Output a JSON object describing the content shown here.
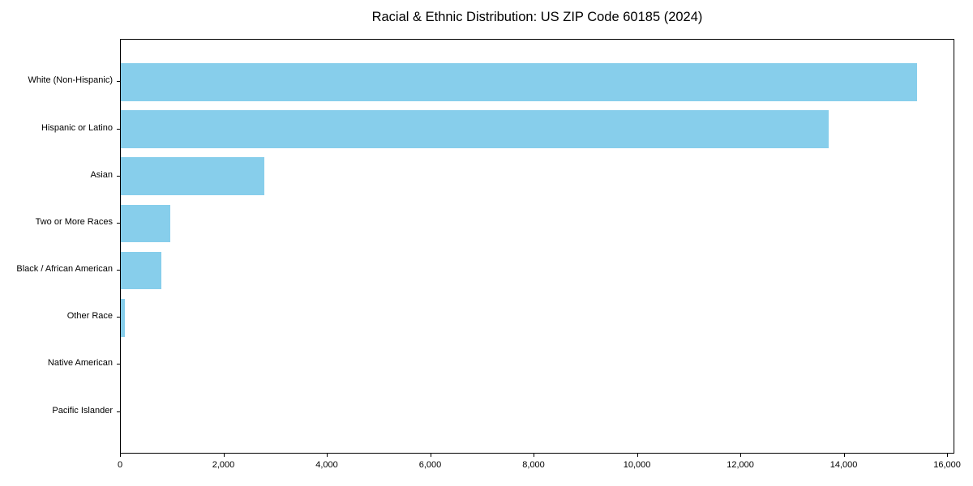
{
  "chart_data": {
    "type": "bar",
    "orientation": "horizontal",
    "title": "Racial & Ethnic Distribution: US ZIP Code 60185 (2024)",
    "xlabel": "",
    "ylabel": "",
    "categories": [
      "White (Non-Hispanic)",
      "Hispanic or Latino",
      "Asian",
      "Two or More Races",
      "Black / African American",
      "Other Race",
      "Native American",
      "Pacific Islander"
    ],
    "values": [
      15400,
      13700,
      2780,
      950,
      790,
      75,
      0,
      0
    ],
    "xlim": [
      0,
      16140
    ],
    "xticks": [
      0,
      2000,
      4000,
      6000,
      8000,
      10000,
      12000,
      14000,
      16000
    ],
    "bar_color": "#87CEEB",
    "grid": false,
    "legend": false,
    "background_color": "#ffffff",
    "border_color": "#000000"
  }
}
